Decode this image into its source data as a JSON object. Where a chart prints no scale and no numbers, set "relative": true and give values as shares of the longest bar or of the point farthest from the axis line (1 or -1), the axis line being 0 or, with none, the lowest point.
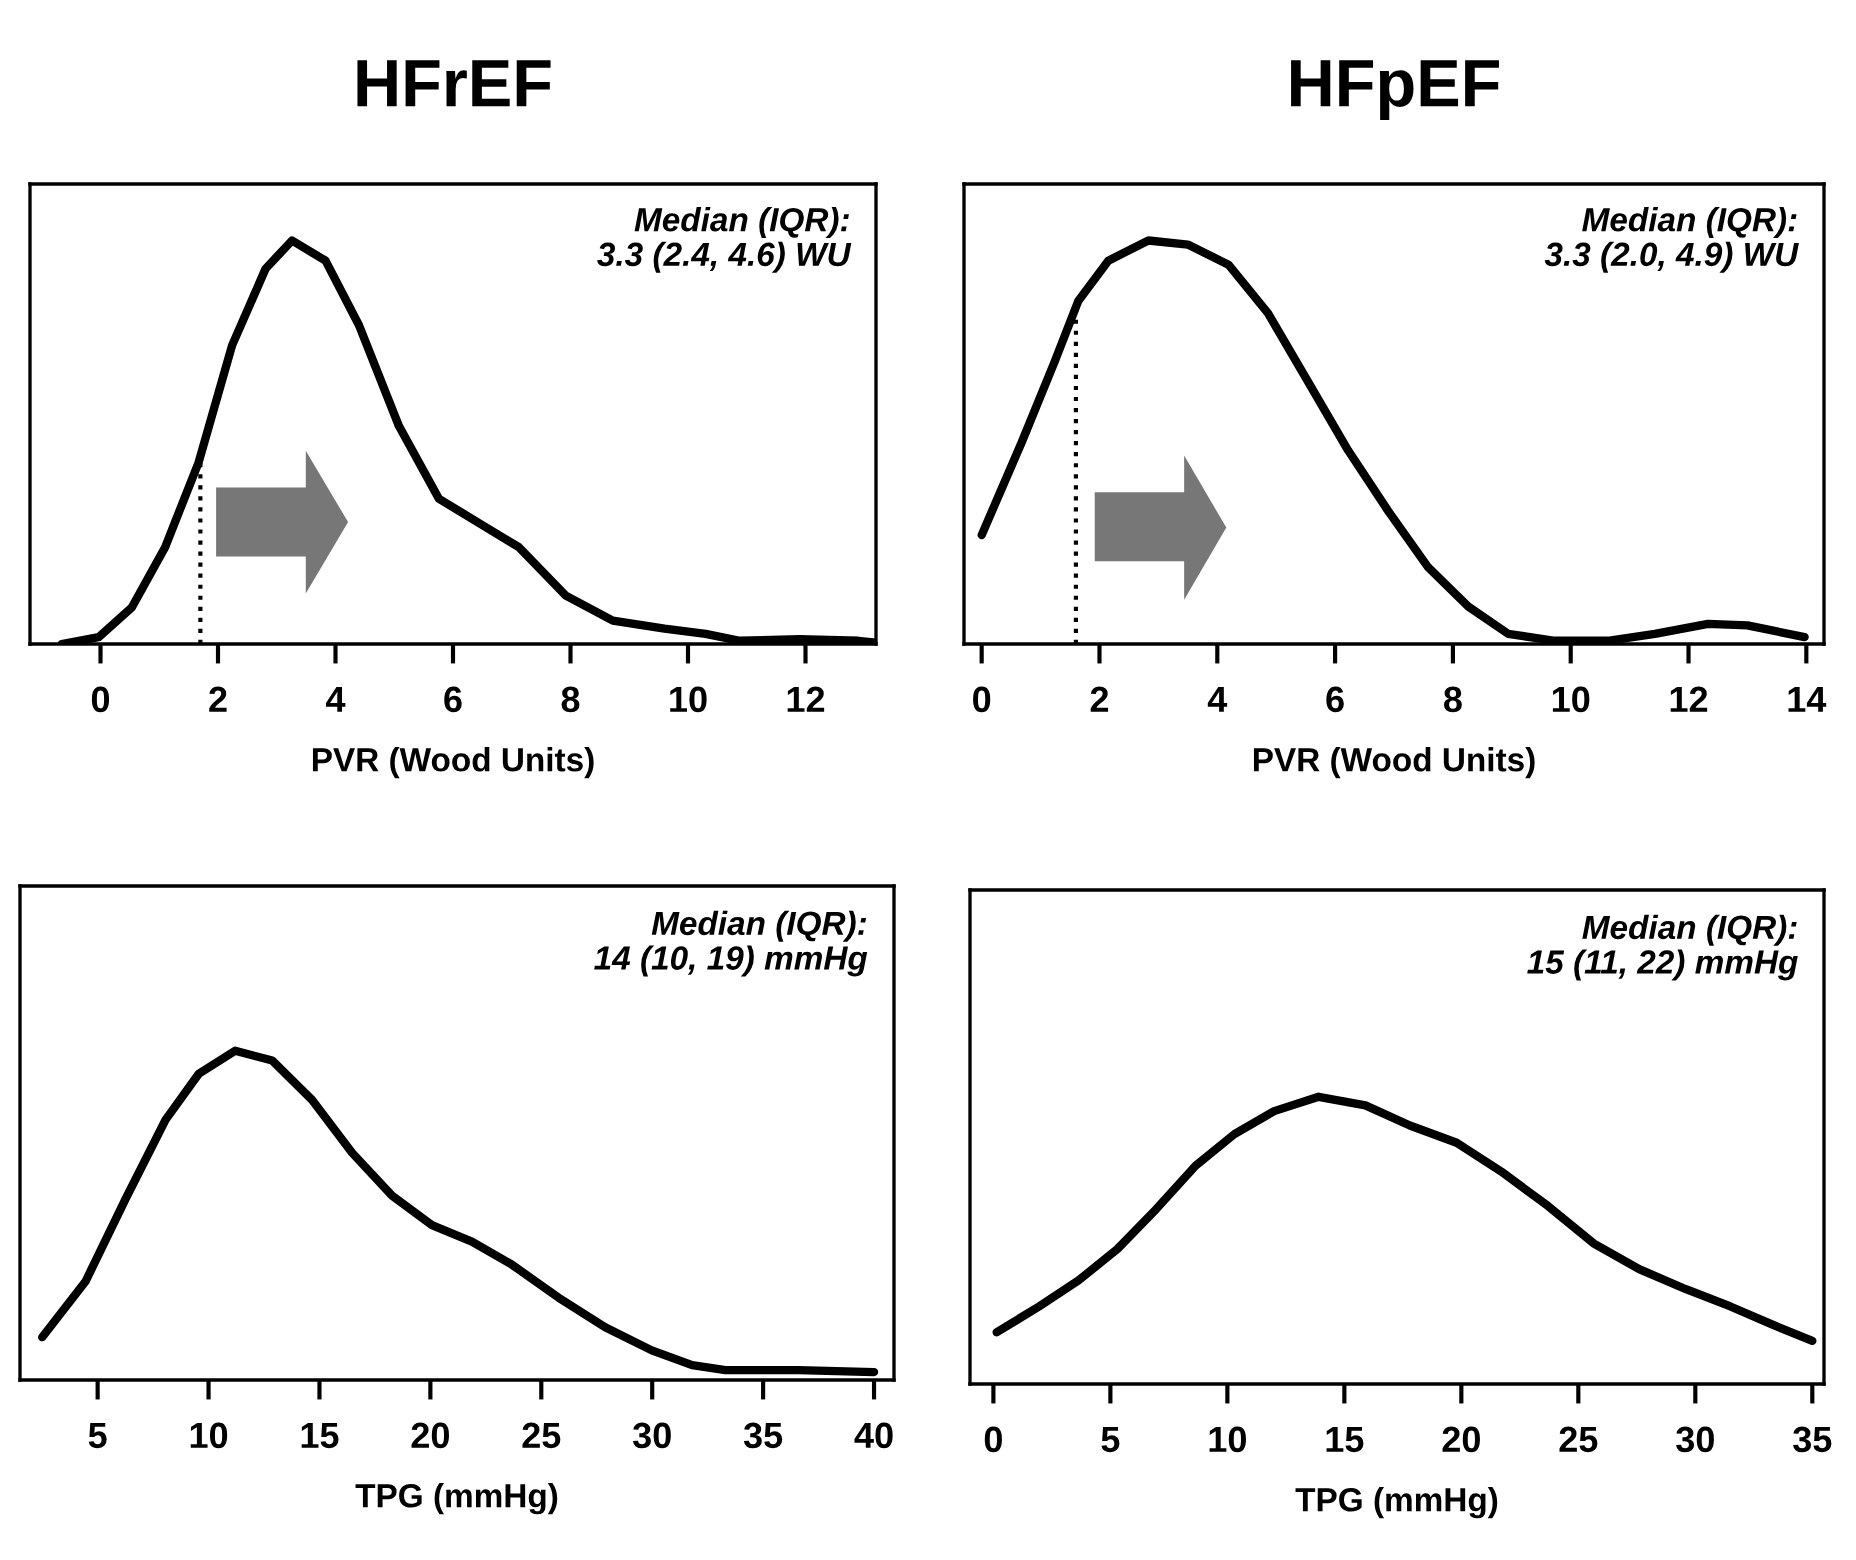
{
  "chart_data": [
    {
      "type": "line",
      "title": "HFrEF",
      "xlabel": "PVR (Wood Units)",
      "relative": true,
      "xlim": [
        -1.2,
        13.2
      ],
      "xticks": [
        0,
        2,
        4,
        6,
        8,
        10,
        12
      ],
      "annotations": [
        "Median (IQR):\n3.3 (2.4, 4.6) WU"
      ],
      "ref_lines": [
        {
          "axis": "x",
          "value": 1.7,
          "line_style": "dotted",
          "color": "#000000"
        }
      ],
      "series": [
        {
          "color": "#000000",
          "x": [
            -0.66,
            -0.03,
            0.53,
            1.1,
            1.67,
            2.24,
            2.81,
            3.26,
            3.83,
            4.4,
            5.08,
            5.76,
            6.44,
            7.12,
            7.92,
            8.72,
            9.6,
            10.3,
            10.88,
            11.9,
            12.9,
            13.2
          ],
          "values": [
            0,
            0.017,
            0.09,
            0.24,
            0.45,
            0.74,
            0.93,
            1.0,
            0.95,
            0.79,
            0.54,
            0.36,
            0.3,
            0.24,
            0.12,
            0.058,
            0.038,
            0.025,
            0.008,
            0.012,
            0.008,
            0.003
          ]
        }
      ]
    },
    {
      "type": "line",
      "title": "HFpEF",
      "xlabel": "PVR (Wood Units)",
      "relative": true,
      "xlim": [
        -0.3,
        14.3
      ],
      "xticks": [
        0,
        2,
        4,
        6,
        8,
        10,
        12,
        14
      ],
      "annotations": [
        "Median (IQR):\n3.3 (2.0, 4.9) WU"
      ],
      "ref_lines": [
        {
          "axis": "x",
          "value": 1.6,
          "line_style": "dotted",
          "color": "#000000"
        }
      ],
      "series": [
        {
          "color": "#000000",
          "x": [
            0,
            0.68,
            1.24,
            1.64,
            2.15,
            2.83,
            3.5,
            4.19,
            4.86,
            5.54,
            6.22,
            6.9,
            7.58,
            8.26,
            8.94,
            9.73,
            10.63,
            11.43,
            12.33,
            13.0,
            13.97
          ],
          "values": [
            0.27,
            0.5,
            0.7,
            0.85,
            0.95,
            1.0,
            0.99,
            0.94,
            0.82,
            0.65,
            0.48,
            0.33,
            0.19,
            0.093,
            0.025,
            0.008,
            0.008,
            0.025,
            0.05,
            0.046,
            0.017
          ]
        }
      ]
    },
    {
      "type": "line",
      "xlabel": "TPG (mmHg)",
      "relative": true,
      "xlim": [
        1.5,
        40.9
      ],
      "xticks": [
        5,
        10,
        15,
        20,
        25,
        30,
        35,
        40
      ],
      "annotations": [
        "Median (IQR):\n14 (10, 19) mmHg"
      ],
      "series": [
        {
          "color": "#000000",
          "x": [
            2.5,
            4.46,
            6.26,
            8.06,
            9.56,
            11.2,
            12.87,
            14.67,
            16.47,
            18.27,
            20.07,
            21.87,
            23.68,
            25.78,
            27.88,
            29.98,
            31.8,
            33.3,
            36.6,
            40.0
          ],
          "values": [
            0.13,
            0.3,
            0.55,
            0.79,
            0.93,
            1.0,
            0.97,
            0.85,
            0.69,
            0.56,
            0.47,
            0.42,
            0.35,
            0.25,
            0.16,
            0.09,
            0.045,
            0.03,
            0.03,
            0.024
          ]
        }
      ]
    },
    {
      "type": "line",
      "xlabel": "TPG (mmHg)",
      "relative": true,
      "xlim": [
        -1.0,
        35.5
      ],
      "xticks": [
        0,
        5,
        10,
        15,
        20,
        25,
        30,
        35
      ],
      "annotations": [
        "Median (IQR):\n15 (11, 22) mmHg"
      ],
      "series": [
        {
          "color": "#000000",
          "x": [
            0.14,
            1.95,
            3.63,
            5.3,
            6.97,
            8.64,
            10.3,
            12.0,
            13.9,
            15.9,
            17.8,
            19.8,
            21.7,
            23.7,
            25.65,
            27.6,
            29.6,
            31.5,
            33.2,
            35.0
          ],
          "values": [
            0.18,
            0.27,
            0.36,
            0.47,
            0.61,
            0.76,
            0.87,
            0.95,
            1.0,
            0.97,
            0.9,
            0.84,
            0.74,
            0.62,
            0.49,
            0.4,
            0.33,
            0.27,
            0.21,
            0.15
          ]
        }
      ]
    }
  ]
}
